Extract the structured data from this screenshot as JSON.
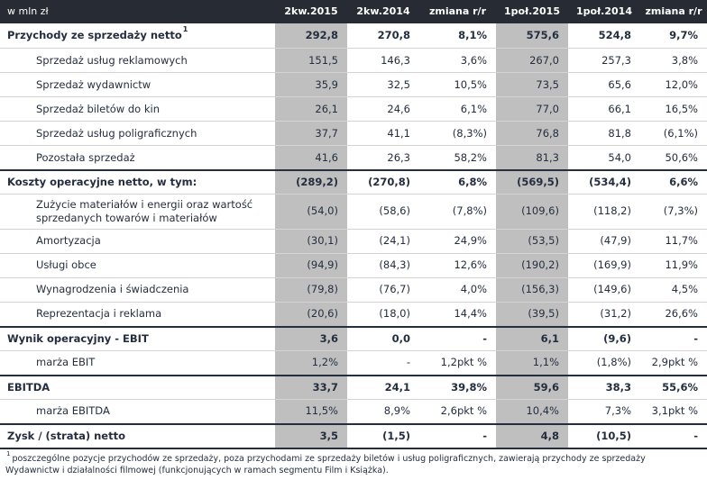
{
  "table": {
    "unit_label": "w mln zł",
    "columns": [
      "2kw.2015",
      "2kw.2014",
      "zmiana r/r",
      "1poł.2015",
      "1poł.2014",
      "zmiana r/r"
    ],
    "gray_column_color": "#bfbfbf",
    "header_bg_color": "#272b33",
    "rows": [
      {
        "label": "Przychody ze sprzedaży netto",
        "sup": "1",
        "bold": true,
        "indent": false,
        "section": false,
        "values": [
          "292,8",
          "270,8",
          "8,1%",
          "575,6",
          "524,8",
          "9,7%"
        ]
      },
      {
        "label": "Sprzedaż usług reklamowych",
        "bold": false,
        "indent": true,
        "section": false,
        "values": [
          "151,5",
          "146,3",
          "3,6%",
          "267,0",
          "257,3",
          "3,8%"
        ]
      },
      {
        "label": "Sprzedaż wydawnictw",
        "bold": false,
        "indent": true,
        "section": false,
        "values": [
          "35,9",
          "32,5",
          "10,5%",
          "73,5",
          "65,6",
          "12,0%"
        ]
      },
      {
        "label": "Sprzedaż biletów do kin",
        "bold": false,
        "indent": true,
        "section": false,
        "values": [
          "26,1",
          "24,6",
          "6,1%",
          "77,0",
          "66,1",
          "16,5%"
        ]
      },
      {
        "label": "Sprzedaż usług poligraficznych",
        "bold": false,
        "indent": true,
        "section": false,
        "values": [
          "37,7",
          "41,1",
          "(8,3%)",
          "76,8",
          "81,8",
          "(6,1%)"
        ]
      },
      {
        "label": "Pozostała sprzedaż",
        "bold": false,
        "indent": true,
        "section": false,
        "values": [
          "41,6",
          "26,3",
          "58,2%",
          "81,3",
          "54,0",
          "50,6%"
        ]
      },
      {
        "label": "Koszty operacyjne netto, w tym:",
        "bold": true,
        "indent": false,
        "section": true,
        "values": [
          "(289,2)",
          "(270,8)",
          "6,8%",
          "(569,5)",
          "(534,4)",
          "6,6%"
        ]
      },
      {
        "label": "Zużycie materiałów i energii oraz wartość sprzedanych towarów i materiałów",
        "bold": false,
        "indent": true,
        "section": false,
        "values": [
          "(54,0)",
          "(58,6)",
          "(7,8%)",
          "(109,6)",
          "(118,2)",
          "(7,3%)"
        ]
      },
      {
        "label": "Amortyzacja",
        "bold": false,
        "indent": true,
        "section": false,
        "values": [
          "(30,1)",
          "(24,1)",
          "24,9%",
          "(53,5)",
          "(47,9)",
          "11,7%"
        ]
      },
      {
        "label": "Usługi obce",
        "bold": false,
        "indent": true,
        "section": false,
        "values": [
          "(94,9)",
          "(84,3)",
          "12,6%",
          "(190,2)",
          "(169,9)",
          "11,9%"
        ]
      },
      {
        "label": "Wynagrodzenia i świadczenia",
        "bold": false,
        "indent": true,
        "section": false,
        "values": [
          "(79,8)",
          "(76,7)",
          "4,0%",
          "(156,3)",
          "(149,6)",
          "4,5%"
        ]
      },
      {
        "label": "Reprezentacja i reklama",
        "bold": false,
        "indent": true,
        "section": false,
        "values": [
          "(20,6)",
          "(18,0)",
          "14,4%",
          "(39,5)",
          "(31,2)",
          "26,6%"
        ]
      },
      {
        "label": "Wynik operacyjny - EBIT",
        "bold": true,
        "indent": false,
        "section": true,
        "values": [
          "3,6",
          "0,0",
          "-",
          "6,1",
          "(9,6)",
          "-"
        ]
      },
      {
        "label": "marża EBIT",
        "bold": false,
        "indent": true,
        "section": false,
        "values": [
          "1,2%",
          "-",
          "1,2pkt %",
          "1,1%",
          "(1,8%)",
          "2,9pkt %"
        ]
      },
      {
        "label": "EBITDA",
        "bold": true,
        "indent": false,
        "section": true,
        "values": [
          "33,7",
          "24,1",
          "39,8%",
          "59,6",
          "38,3",
          "55,6%"
        ]
      },
      {
        "label": "marża EBITDA",
        "bold": false,
        "indent": true,
        "section": false,
        "values": [
          "11,5%",
          "8,9%",
          "2,6pkt %",
          "10,4%",
          "7,3%",
          "3,1pkt %"
        ]
      },
      {
        "label": "Zysk / (strata) netto",
        "bold": true,
        "indent": false,
        "section": true,
        "values": [
          "3,5",
          "(1,5)",
          "-",
          "4,8",
          "(10,5)",
          "-"
        ]
      }
    ]
  },
  "footnote": {
    "marker": "1",
    "text": "poszczególne pozycje przychodów ze sprzedaży, poza przychodami ze sprzedaży biletów i usług poligraficznych, zawierają przychody ze sprzedaży Wydawnictw i działalności filmowej (funkcjonujących w ramach segmentu Film i Książka)."
  }
}
